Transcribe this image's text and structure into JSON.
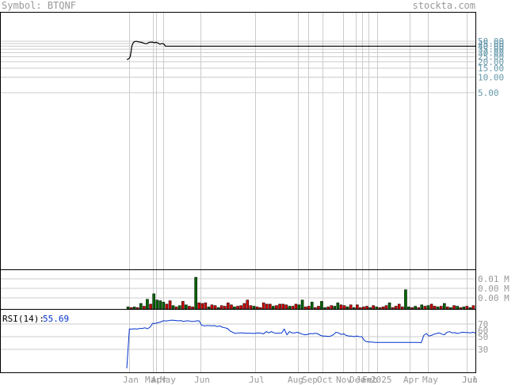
{
  "header": {
    "symbol_prefix": "Symbol:",
    "symbol": "BTQNF",
    "brand": "stockta.com"
  },
  "rsi": {
    "label": "RSI(14):",
    "value": "55.69"
  },
  "colors": {
    "price": "#000000",
    "volume_up": "#006600",
    "volume_down": "#cc0000",
    "rsi_line": "#0033cc",
    "grid": "#cccccc",
    "axis_text": "#999999"
  },
  "chart_data": [
    {
      "type": "line",
      "panel": "price",
      "scale": "log",
      "y_ticks": [
        5.0,
        10.0,
        15.0,
        20.0,
        25.0,
        30.0,
        35.0,
        40.0,
        45.0,
        50.0
      ],
      "y_tick_labels": [
        "5.00",
        "10.00",
        "15.00",
        "20.00",
        "25.00",
        "30.00",
        "35.00",
        "40.00",
        "45.00",
        "50.00"
      ],
      "x_tick_labels": [
        "Jan",
        "Mar",
        "Apr",
        "May",
        "Jun",
        "Jul",
        "Aug",
        "Sep",
        "Oct",
        "Nov",
        "Dec",
        "Jan",
        "Feb",
        "2025",
        "Apr",
        "May",
        "Jun",
        "Jul"
      ],
      "grid": true,
      "series": [
        {
          "values": [
            22.0,
            22.2,
            22.5,
            23.0,
            24.0,
            26.0,
            32.0,
            40.0,
            44.0,
            47.0,
            48.5,
            49.0,
            49.5,
            49.8,
            49.5,
            49.0,
            48.8,
            48.5,
            48.0,
            47.5,
            47.5,
            47.0,
            46.5,
            46.0,
            45.5,
            45.0,
            45.0,
            44.5,
            45.0,
            46.0,
            47.0,
            47.5,
            48.0,
            48.0,
            47.5,
            48.5,
            47.5,
            47.0,
            46.5,
            47.0,
            47.5,
            47.0,
            46.5,
            46.0,
            45.0,
            44.0,
            44.0,
            44.5,
            45.0,
            45.0,
            44.5,
            43.5,
            42.0,
            40.0,
            40.0,
            40.0,
            40.0,
            40.0,
            40.0,
            40.0,
            40.0,
            40.0,
            40.0,
            40.0,
            40.0,
            40.0,
            40.0,
            40.0,
            40.0,
            40.0,
            40.0,
            40.0,
            40.0,
            40.0,
            40.0,
            40.0,
            40.0,
            40.0,
            40.0,
            40.0,
            40.0,
            40.0,
            40.0,
            40.0,
            40.0,
            40.0,
            40.0,
            40.0,
            40.0,
            40.0,
            40.0,
            40.0,
            40.0,
            40.0,
            40.0,
            40.0,
            40.0,
            40.0,
            40.0,
            40.0,
            40.0,
            40.0,
            40.0,
            40.0,
            40.0,
            40.0,
            40.0,
            40.0,
            40.0,
            40.0,
            40.0,
            40.0,
            40.0,
            40.0,
            40.0,
            40.0,
            40.0,
            40.0,
            40.0,
            40.0,
            40.0,
            40.0,
            40.0,
            40.0,
            40.0,
            40.0,
            40.0,
            40.0,
            40.0,
            40.0,
            40.0,
            40.0,
            40.0,
            40.0,
            40.0,
            40.0,
            40.0,
            40.0,
            40.0,
            40.0,
            40.0,
            40.0,
            40.0,
            40.0,
            40.0,
            40.0,
            40.0,
            40.0,
            40.0,
            40.0,
            40.0,
            40.0,
            40.0,
            40.0,
            40.0,
            40.0,
            40.0,
            40.0,
            40.0,
            40.0,
            40.0,
            40.0,
            40.0,
            40.0,
            40.0,
            40.0,
            40.0,
            40.0,
            40.0,
            40.0,
            40.0,
            40.0,
            40.0,
            40.0,
            40.0,
            40.0,
            40.0,
            40.0,
            40.0,
            40.0,
            40.0,
            40.0,
            40.0,
            40.0,
            40.0,
            40.0,
            40.0,
            40.0,
            40.0,
            40.0,
            40.0,
            40.0,
            40.0,
            40.0,
            40.0,
            40.0,
            40.0,
            40.0,
            40.0,
            40.0,
            40.0,
            40.0,
            40.0,
            40.0,
            40.0,
            40.0,
            40.0,
            40.0,
            40.0,
            40.0,
            40.0,
            40.0,
            40.0,
            40.0,
            40.0,
            40.0,
            40.0,
            40.0,
            40.0,
            40.0,
            40.0,
            40.0,
            40.0,
            40.0,
            40.0,
            40.0,
            40.0,
            40.0,
            40.0,
            40.0,
            40.0,
            40.0,
            40.0,
            40.0,
            40.0,
            40.0,
            40.0,
            40.0,
            40.0,
            40.0,
            40.0,
            40.0,
            40.0,
            40.0,
            40.0,
            40.0,
            40.0,
            40.0,
            40.0,
            40.0,
            40.0,
            40.0,
            40.0,
            40.0,
            40.0,
            40.0,
            40.0,
            40.0,
            40.0,
            40.0,
            40.0,
            40.0,
            40.0,
            40.0,
            40.0,
            40.0,
            40.0,
            40.0,
            40.0,
            40.0,
            40.0,
            40.0,
            40.0,
            40.0,
            40.0,
            40.0,
            40.0,
            40.0,
            40.0,
            40.0,
            40.0,
            40.0,
            40.0,
            40.0,
            40.0,
            40.0,
            40.0,
            40.0,
            40.0,
            40.0,
            40.0,
            40.0,
            40.0,
            40.0,
            40.0,
            40.0,
            40.0,
            40.0,
            40.0,
            40.0,
            40.0,
            40.0,
            40.0,
            40.0,
            40.0,
            40.0,
            40.0,
            40.0,
            40.0,
            40.0,
            40.0,
            40.0,
            40.0,
            40.0,
            40.0,
            40.0,
            40.0,
            40.0,
            40.0,
            40.0,
            40.0,
            40.0,
            40.0,
            40.0,
            40.0,
            40.0,
            40.0,
            40.0,
            40.0,
            40.0,
            40.0,
            40.0,
            40.0,
            40.0,
            40.0,
            40.0,
            40.0,
            40.0,
            40.0,
            40.0,
            40.0,
            40.0,
            40.0,
            40.0,
            40.0,
            40.0,
            40.0,
            40.0,
            40.0,
            40.0,
            40.0,
            40.0,
            40.0,
            40.0,
            40.0,
            40.0,
            40.0,
            40.0,
            40.0,
            40.0,
            40.0,
            40.0,
            40.0,
            40.0,
            40.0,
            40.0,
            40.0,
            40.0,
            40.0,
            40.0,
            40.0,
            40.0,
            40.0,
            40.0,
            40.0,
            40.0,
            40.0,
            40.0,
            40.0,
            40.0,
            40.0,
            40.0,
            40.0,
            40.0,
            40.0,
            40.0,
            40.0,
            40.0,
            40.0,
            40.0,
            40.0,
            40.0,
            40.0,
            40.0,
            40.0,
            40.0,
            40.0,
            40.0,
            40.0,
            40.0,
            40.0,
            40.0,
            40.0,
            40.0,
            40.0,
            40.0,
            40.0,
            40.0,
            40.0,
            40.0,
            40.0,
            40.0,
            40.0,
            40.0,
            40.0,
            40.0,
            40.0,
            40.0,
            40.0,
            40.0,
            40.0,
            40.0,
            40.0,
            40.0,
            40.0,
            40.0,
            40.0,
            40.0,
            40.0,
            40.0,
            40.0,
            40.0,
            40.0,
            40.0,
            40.0,
            40.0,
            40.0,
            40.0,
            40.0,
            40.0,
            40.0,
            40.0,
            40.0,
            40.0,
            40.0,
            40.0,
            40.0,
            40.0,
            40.0,
            40.0,
            40.0,
            40.0,
            40.0,
            40.0,
            40.0,
            40.0,
            40.0,
            40.0,
            40.0,
            40.0,
            40.0,
            40.0,
            40.0,
            40.0,
            40.0,
            40.0,
            40.0,
            40.0,
            40.0,
            40.0,
            40.0,
            40.0,
            40.0,
            40.0,
            40.0,
            40.0,
            40.0,
            40.0,
            40.0
          ]
        }
      ]
    },
    {
      "type": "bar",
      "panel": "volume",
      "y_tick_labels": [
        "0.01 M",
        "0.00 M",
        "0.00 M"
      ],
      "values": [
        0.0015,
        0.001,
        0.0015,
        0.001,
        0.004,
        0.002,
        0.007,
        0.0035,
        0.011,
        0.0065,
        0.006,
        0.005,
        0.0035,
        0.006,
        0.0025,
        0.0015,
        0.0025,
        0.0055,
        0.003,
        0.002,
        0.0015,
        0.023,
        0.0045,
        0.004,
        0.0045,
        0.0015,
        0.003,
        0.0025,
        0.001,
        0.0025,
        0.002,
        0.0045,
        0.003,
        0.0015,
        0.002,
        0.0025,
        0.004,
        0.0065,
        0.0025,
        0.002,
        0.0015,
        0.001,
        0.0045,
        0.0035,
        0.0035,
        0.002,
        0.0025,
        0.0035,
        0.0035,
        0.003,
        0.002,
        0.002,
        0.0035,
        0.003,
        0.0065,
        0.0015,
        0.002,
        0.005,
        0.001,
        0.002,
        0.0055,
        0.001,
        0.0015,
        0.0025,
        0.002,
        0.0045,
        0.003,
        0.0025,
        0.0015,
        0.003,
        0.001,
        0.003,
        0.001,
        0.0015,
        0.002,
        0.001,
        0.0025,
        0.0015,
        0.001,
        0.0015,
        0.0025,
        0.0045,
        0.001,
        0.002,
        0.0035,
        0.0015,
        0.014,
        0.0015,
        0.001,
        0.002,
        0.001,
        0.003,
        0.002,
        0.0025,
        0.0035,
        0.002,
        0.0015,
        0.002,
        0.004,
        0.0015,
        0.001,
        0.0025,
        0.002,
        0.001,
        0.0015,
        0.002,
        0.001,
        0.0025
      ],
      "up": [
        true,
        false,
        true,
        false,
        true,
        false,
        true,
        false,
        true,
        true,
        true,
        true,
        false,
        false,
        true,
        false,
        true,
        false,
        true,
        false,
        false,
        true,
        false,
        false,
        false,
        true,
        false,
        false,
        true,
        false,
        false,
        false,
        false,
        true,
        false,
        false,
        false,
        false,
        false,
        true,
        false,
        false,
        false,
        false,
        false,
        true,
        false,
        false,
        false,
        false,
        true,
        false,
        false,
        true,
        true,
        false,
        false,
        true,
        false,
        false,
        true,
        true,
        false,
        false,
        true,
        true,
        false,
        false,
        true,
        false,
        true,
        false,
        false,
        false,
        false,
        true,
        false,
        true,
        false,
        false,
        false,
        true,
        false,
        false,
        false,
        false,
        true,
        true,
        false,
        true,
        false,
        true,
        false,
        true,
        false,
        false,
        true,
        false,
        true,
        false,
        true,
        false,
        true,
        false,
        true,
        false,
        true,
        false
      ]
    },
    {
      "type": "line",
      "panel": "rsi",
      "y_ticks": [
        30,
        50,
        70
      ],
      "y_tick_labels": [
        "30",
        "50",
        "70"
      ],
      "extra_tick_labels": [
        "60"
      ],
      "series": [
        {
          "values": [
            0,
            62,
            62,
            62.5,
            62,
            63,
            63,
            64,
            62.5,
            65,
            71,
            71,
            72,
            73,
            75,
            75,
            75,
            76,
            76,
            75.5,
            75,
            75.5,
            74,
            75,
            75,
            74,
            74,
            75,
            75,
            68,
            67,
            67.5,
            67.5,
            67,
            67.5,
            66,
            67,
            65,
            64,
            63,
            59,
            57,
            55,
            56,
            56,
            56,
            55.5,
            55.5,
            55.5,
            55,
            55.5,
            56,
            55.5,
            54.5,
            58,
            56,
            58,
            56,
            55.5,
            55.5,
            56,
            62,
            53,
            58,
            56,
            56,
            57,
            55.5,
            54,
            53,
            53.5,
            55,
            54.5,
            55.5,
            54.5,
            52,
            51,
            51,
            50.5,
            51,
            53,
            57,
            56,
            53.5,
            54.5,
            52,
            51,
            51,
            50,
            51,
            50,
            50,
            44,
            42,
            41.5,
            41.5,
            41,
            41,
            41,
            41,
            41,
            41,
            41,
            41,
            41,
            41,
            41,
            41,
            41,
            41,
            41,
            41,
            41,
            41,
            40.5,
            52,
            55,
            51,
            52,
            54,
            55,
            56,
            54,
            53,
            57,
            58,
            56,
            56.5,
            55,
            56,
            57,
            56.5,
            56.5,
            56,
            57,
            55.69
          ]
        }
      ]
    }
  ]
}
